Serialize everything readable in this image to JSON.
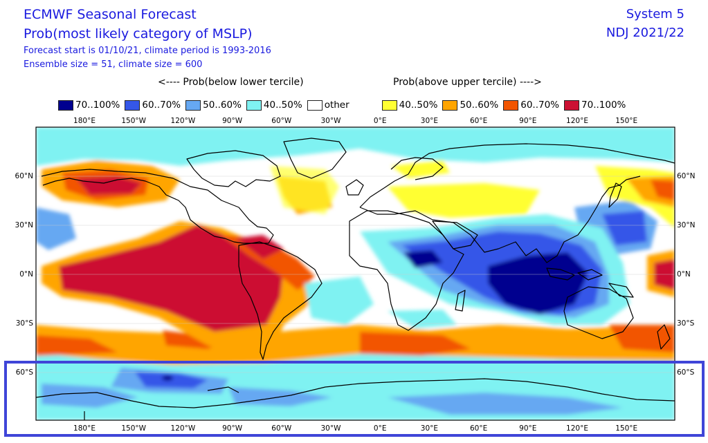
{
  "header": {
    "title": "ECMWF Seasonal Forecast",
    "subtitle": "Prob(most likely category of MSLP)",
    "forecast_line": "Forecast start is 01/10/21, climate period is 1993-2016",
    "ensemble_line": "Ensemble size = 51, climate size = 600",
    "system": "System 5",
    "period": "NDJ 2021/22"
  },
  "legend": {
    "below_label": "<---- Prob(below lower tercile)",
    "above_label": "Prob(above upper tercile) ---->",
    "items": [
      {
        "label": "70..100%",
        "color": "#00008f"
      },
      {
        "label": "60..70%",
        "color": "#3557e8"
      },
      {
        "label": "50..60%",
        "color": "#66a8f2"
      },
      {
        "label": "40..50%",
        "color": "#7ff2f2"
      },
      {
        "label": "other",
        "color": "#ffffff"
      },
      {
        "label": "40..50%",
        "color": "#ffff33"
      },
      {
        "label": "50..60%",
        "color": "#ffa500"
      },
      {
        "label": "60..70%",
        "color": "#f25500"
      },
      {
        "label": "70..100%",
        "color": "#cc1133"
      }
    ]
  },
  "map": {
    "lon_labels": [
      "180°E",
      "150°W",
      "120°W",
      "90°W",
      "60°W",
      "30°W",
      "0°E",
      "30°E",
      "60°E",
      "90°E",
      "120°E",
      "150°E"
    ],
    "lat_labels_left": [
      "60°N",
      "30°N",
      "0°N",
      "30°S",
      "60°S"
    ],
    "lat_labels_right": [
      "60°N",
      "30°N",
      "0°N",
      "30°S",
      "60°S"
    ],
    "highlight": "Southern Ocean / Antarctic band"
  }
}
